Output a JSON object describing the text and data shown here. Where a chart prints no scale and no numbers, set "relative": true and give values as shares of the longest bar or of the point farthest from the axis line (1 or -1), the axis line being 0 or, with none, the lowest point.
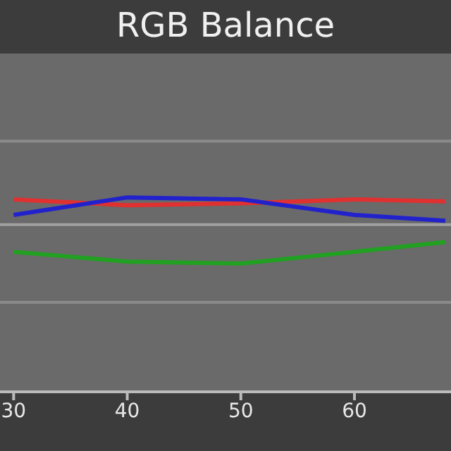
{
  "chart_data": {
    "type": "line",
    "title": "RGB Balance",
    "relative": true,
    "x": [
      30,
      40,
      50,
      60,
      68
    ],
    "xlim": [
      28.8,
      68.5
    ],
    "xticks": [
      30,
      40,
      50,
      60
    ],
    "ref_lines": [
      {
        "axis": "y",
        "value": 1.29,
        "color": "#8a8a8a"
      },
      {
        "axis": "y",
        "value": 0.86,
        "color": "#a0a0a0"
      },
      {
        "axis": "y",
        "value": 0.46,
        "color": "#8a8a8a"
      }
    ],
    "legend": false,
    "marker": "none",
    "line_style": "solid",
    "series": [
      {
        "color": "#e03030",
        "values": [
          0.99,
          0.96,
          0.97,
          0.99,
          0.98
        ]
      },
      {
        "color": "#2222cc",
        "values": [
          0.91,
          1,
          0.99,
          0.91,
          0.88
        ]
      },
      {
        "color": "#22a022",
        "values": [
          0.72,
          0.67,
          0.66,
          0.72,
          0.77
        ]
      }
    ]
  }
}
